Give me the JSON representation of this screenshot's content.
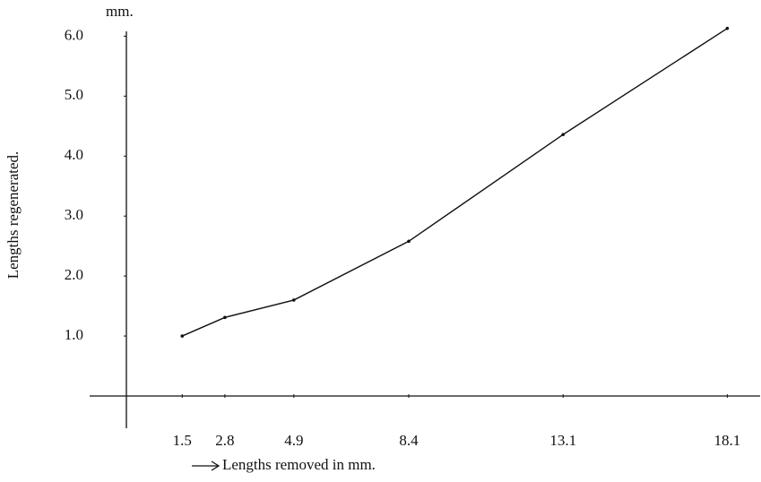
{
  "chart_data": {
    "type": "line",
    "y_unit": "mm.",
    "ylabel": "Lengths regenerated.",
    "xlabel": "Lengths removed in mm.",
    "x": [
      1.5,
      2.8,
      4.9,
      8.4,
      13.1,
      18.1
    ],
    "series": [
      {
        "color": "#111111",
        "values": [
          1.0,
          1.31,
          1.6,
          2.58,
          4.36,
          6.13
        ]
      }
    ],
    "xlim": [
      -0.2,
      19.1
    ],
    "xticks": [
      1.5,
      2.8,
      4.9,
      8.4,
      13.1,
      18.1
    ],
    "ylim": [
      0,
      6.2
    ],
    "yticks": [
      {
        "value": 1,
        "label": "1.0"
      },
      {
        "value": 2,
        "label": "2.0"
      },
      {
        "value": 3,
        "label": "3.0"
      },
      {
        "value": 4,
        "label": "4.0"
      },
      {
        "value": 5,
        "label": "5.0"
      },
      {
        "value": 6,
        "label": "6.0"
      }
    ]
  }
}
